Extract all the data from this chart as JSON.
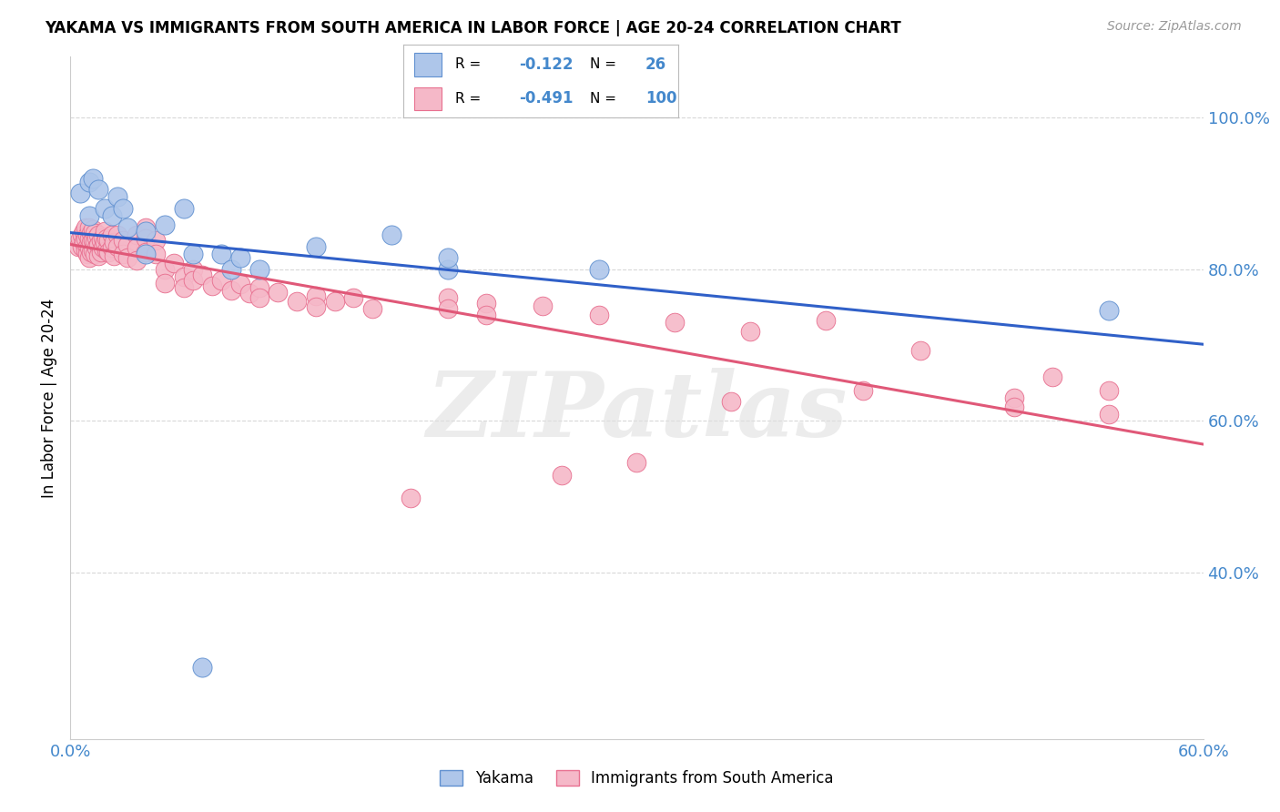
{
  "title": "YAKAMA VS IMMIGRANTS FROM SOUTH AMERICA IN LABOR FORCE | AGE 20-24 CORRELATION CHART",
  "source": "Source: ZipAtlas.com",
  "ylabel": "In Labor Force | Age 20-24",
  "xmin": 0.0,
  "xmax": 0.6,
  "ymin": 0.18,
  "ymax": 1.08,
  "blue_color": "#aec6ea",
  "pink_color": "#f5b8c8",
  "blue_edge_color": "#6090d0",
  "pink_edge_color": "#e87090",
  "blue_line_color": "#3060c8",
  "pink_line_color": "#e05878",
  "legend_r_blue": "-0.122",
  "legend_n_blue": "26",
  "legend_r_pink": "-0.491",
  "legend_n_pink": "100",
  "watermark": "ZIPatlas",
  "grid_color": "#d8d8d8",
  "tick_color": "#4488cc",
  "blue_scatter": [
    [
      0.005,
      0.9
    ],
    [
      0.01,
      0.915
    ],
    [
      0.012,
      0.92
    ],
    [
      0.015,
      0.905
    ],
    [
      0.01,
      0.87
    ],
    [
      0.018,
      0.88
    ],
    [
      0.022,
      0.87
    ],
    [
      0.025,
      0.895
    ],
    [
      0.028,
      0.88
    ],
    [
      0.03,
      0.855
    ],
    [
      0.04,
      0.85
    ],
    [
      0.04,
      0.82
    ],
    [
      0.05,
      0.858
    ],
    [
      0.06,
      0.88
    ],
    [
      0.065,
      0.82
    ],
    [
      0.08,
      0.82
    ],
    [
      0.085,
      0.8
    ],
    [
      0.09,
      0.815
    ],
    [
      0.1,
      0.8
    ],
    [
      0.13,
      0.83
    ],
    [
      0.17,
      0.845
    ],
    [
      0.2,
      0.8
    ],
    [
      0.2,
      0.815
    ],
    [
      0.28,
      0.8
    ],
    [
      0.55,
      0.745
    ],
    [
      0.07,
      0.275
    ]
  ],
  "pink_scatter": [
    [
      0.004,
      0.83
    ],
    [
      0.005,
      0.84
    ],
    [
      0.006,
      0.845
    ],
    [
      0.006,
      0.83
    ],
    [
      0.007,
      0.85
    ],
    [
      0.007,
      0.835
    ],
    [
      0.008,
      0.855
    ],
    [
      0.008,
      0.84
    ],
    [
      0.008,
      0.825
    ],
    [
      0.009,
      0.845
    ],
    [
      0.009,
      0.83
    ],
    [
      0.009,
      0.82
    ],
    [
      0.01,
      0.855
    ],
    [
      0.01,
      0.84
    ],
    [
      0.01,
      0.828
    ],
    [
      0.01,
      0.815
    ],
    [
      0.011,
      0.848
    ],
    [
      0.011,
      0.835
    ],
    [
      0.011,
      0.822
    ],
    [
      0.012,
      0.852
    ],
    [
      0.012,
      0.838
    ],
    [
      0.012,
      0.825
    ],
    [
      0.013,
      0.848
    ],
    [
      0.013,
      0.835
    ],
    [
      0.013,
      0.82
    ],
    [
      0.014,
      0.842
    ],
    [
      0.014,
      0.828
    ],
    [
      0.015,
      0.845
    ],
    [
      0.015,
      0.832
    ],
    [
      0.015,
      0.818
    ],
    [
      0.016,
      0.838
    ],
    [
      0.016,
      0.822
    ],
    [
      0.017,
      0.842
    ],
    [
      0.017,
      0.828
    ],
    [
      0.018,
      0.85
    ],
    [
      0.018,
      0.835
    ],
    [
      0.019,
      0.84
    ],
    [
      0.019,
      0.825
    ],
    [
      0.02,
      0.838
    ],
    [
      0.02,
      0.822
    ],
    [
      0.022,
      0.845
    ],
    [
      0.022,
      0.828
    ],
    [
      0.023,
      0.835
    ],
    [
      0.023,
      0.818
    ],
    [
      0.025,
      0.845
    ],
    [
      0.025,
      0.83
    ],
    [
      0.028,
      0.838
    ],
    [
      0.028,
      0.82
    ],
    [
      0.03,
      0.832
    ],
    [
      0.03,
      0.815
    ],
    [
      0.035,
      0.845
    ],
    [
      0.035,
      0.828
    ],
    [
      0.035,
      0.812
    ],
    [
      0.04,
      0.855
    ],
    [
      0.04,
      0.84
    ],
    [
      0.04,
      0.822
    ],
    [
      0.045,
      0.838
    ],
    [
      0.045,
      0.82
    ],
    [
      0.05,
      0.8
    ],
    [
      0.05,
      0.782
    ],
    [
      0.055,
      0.808
    ],
    [
      0.06,
      0.79
    ],
    [
      0.06,
      0.775
    ],
    [
      0.065,
      0.8
    ],
    [
      0.065,
      0.785
    ],
    [
      0.07,
      0.792
    ],
    [
      0.075,
      0.778
    ],
    [
      0.08,
      0.785
    ],
    [
      0.085,
      0.772
    ],
    [
      0.09,
      0.78
    ],
    [
      0.095,
      0.768
    ],
    [
      0.1,
      0.775
    ],
    [
      0.1,
      0.762
    ],
    [
      0.11,
      0.77
    ],
    [
      0.12,
      0.758
    ],
    [
      0.13,
      0.765
    ],
    [
      0.13,
      0.75
    ],
    [
      0.14,
      0.758
    ],
    [
      0.15,
      0.762
    ],
    [
      0.16,
      0.748
    ],
    [
      0.18,
      0.498
    ],
    [
      0.2,
      0.762
    ],
    [
      0.2,
      0.748
    ],
    [
      0.22,
      0.755
    ],
    [
      0.22,
      0.74
    ],
    [
      0.25,
      0.752
    ],
    [
      0.26,
      0.528
    ],
    [
      0.28,
      0.74
    ],
    [
      0.3,
      0.545
    ],
    [
      0.32,
      0.73
    ],
    [
      0.35,
      0.625
    ],
    [
      0.36,
      0.718
    ],
    [
      0.4,
      0.732
    ],
    [
      0.42,
      0.64
    ],
    [
      0.45,
      0.692
    ],
    [
      0.5,
      0.63
    ],
    [
      0.5,
      0.618
    ],
    [
      0.52,
      0.658
    ],
    [
      0.55,
      0.64
    ],
    [
      0.55,
      0.608
    ]
  ]
}
